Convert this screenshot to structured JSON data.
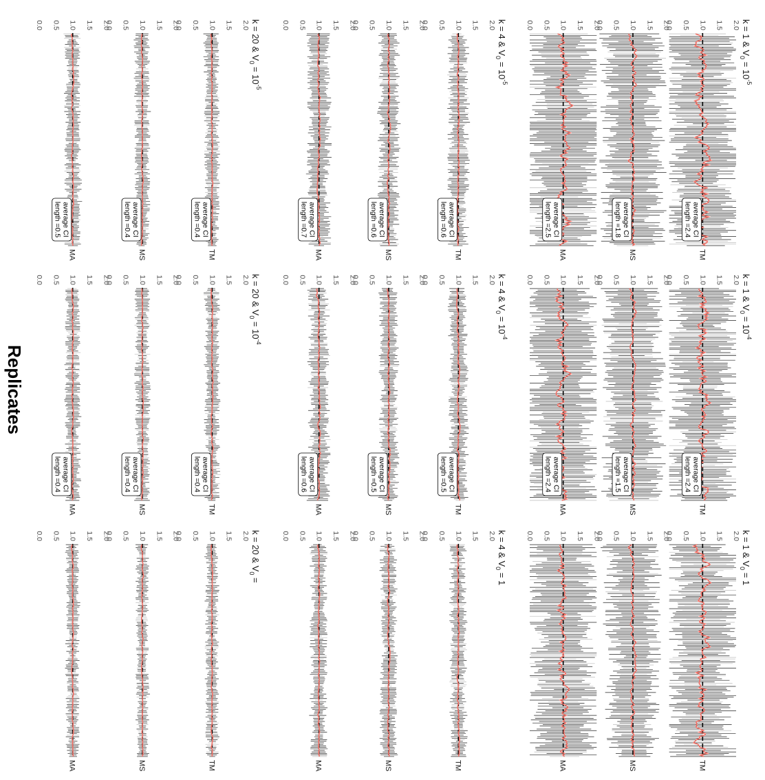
{
  "figure": {
    "x_axis_title": "Replicates",
    "reference_line": 1.0
  },
  "chart_data": {
    "type": "line",
    "rotation": "rotated 90 degrees clockwise; value axis runs top (2.0) to bottom (0.0)",
    "y_ticks": [
      "2.0",
      "1.5",
      "1.0",
      "0.5",
      "0.0"
    ],
    "ylim": [
      0,
      2
    ],
    "reference_value": 1.0,
    "facet_groups": [
      {
        "k": "1",
        "variants": [
          {
            "label_main": "k = 1 & V",
            "label_sub": "0",
            "label_eq": " = 10",
            "label_exp": "-5",
            "panels": [
              {
                "method": "TM",
                "ci_length": "2.4",
                "ci_text": "average CI",
                "ci_prefix": "length =",
                "noise": 0.35,
                "ci": 0.9
              },
              {
                "method": "MS",
                "ci_length": "1.8",
                "ci_text": "average CI",
                "ci_prefix": "length =",
                "noise": 0.15,
                "ci": 0.75
              },
              {
                "method": "MA",
                "ci_length": "2.5",
                "ci_text": "average CI",
                "ci_prefix": "length =",
                "noise": 0.3,
                "ci": 0.95
              }
            ]
          },
          {
            "label_main": "k = 1 & V",
            "label_sub": "0",
            "label_eq": " = 10",
            "label_exp": "-4",
            "panels": [
              {
                "method": "TM",
                "ci_length": "2.4",
                "ci_text": "average CI",
                "ci_prefix": "length =",
                "noise": 0.35,
                "ci": 0.9
              },
              {
                "method": "MS",
                "ci_length": "1.5",
                "ci_text": "average CI",
                "ci_prefix": "length =",
                "noise": 0.12,
                "ci": 0.7
              },
              {
                "method": "MA",
                "ci_length": "2.4",
                "ci_text": "average CI",
                "ci_prefix": "length =",
                "noise": 0.3,
                "ci": 0.95
              }
            ]
          },
          {
            "label_main": "k = 1 & V",
            "label_sub": "0",
            "label_eq": " = 1",
            "label_exp": "",
            "panels": [
              {
                "method": "TM",
                "ci_length": "",
                "ci_text": "",
                "ci_prefix": "",
                "noise": 0.3,
                "ci": 0.85
              },
              {
                "method": "MS",
                "ci_length": "",
                "ci_text": "",
                "ci_prefix": "",
                "noise": 0.12,
                "ci": 0.65
              },
              {
                "method": "MA",
                "ci_length": "",
                "ci_text": "",
                "ci_prefix": "",
                "noise": 0.25,
                "ci": 0.85
              }
            ]
          }
        ]
      },
      {
        "k": "4",
        "variants": [
          {
            "label_main": "k = 4 & V",
            "label_sub": "0",
            "label_eq": " = 10",
            "label_exp": "-5",
            "panels": [
              {
                "method": "TM",
                "ci_length": "0.6",
                "ci_text": "average CI",
                "ci_prefix": "length =",
                "noise": 0.06,
                "ci": 0.25
              },
              {
                "method": "MS",
                "ci_length": "0.6",
                "ci_text": "average CI",
                "ci_prefix": "length =",
                "noise": 0.06,
                "ci": 0.25
              },
              {
                "method": "MA",
                "ci_length": "0.7",
                "ci_text": "average CI",
                "ci_prefix": "length =",
                "noise": 0.07,
                "ci": 0.28
              }
            ]
          },
          {
            "label_main": "k = 4 & V",
            "label_sub": "0",
            "label_eq": " = 10",
            "label_exp": "-4",
            "panels": [
              {
                "method": "TM",
                "ci_length": "0.5",
                "ci_text": "average CI",
                "ci_prefix": "length =",
                "noise": 0.06,
                "ci": 0.22
              },
              {
                "method": "MS",
                "ci_length": "0.5",
                "ci_text": "average CI",
                "ci_prefix": "length =",
                "noise": 0.06,
                "ci": 0.22
              },
              {
                "method": "MA",
                "ci_length": "0.6",
                "ci_text": "average CI",
                "ci_prefix": "length =",
                "noise": 0.06,
                "ci": 0.25
              }
            ]
          },
          {
            "label_main": "k = 4 & V",
            "label_sub": "0",
            "label_eq": " = 1",
            "label_exp": "",
            "panels": [
              {
                "method": "TM",
                "ci_length": "",
                "ci_text": "",
                "ci_prefix": "",
                "noise": 0.05,
                "ci": 0.2
              },
              {
                "method": "MS",
                "ci_length": "",
                "ci_text": "",
                "ci_prefix": "",
                "noise": 0.05,
                "ci": 0.2
              },
              {
                "method": "MA",
                "ci_length": "",
                "ci_text": "",
                "ci_prefix": "",
                "noise": 0.05,
                "ci": 0.2
              }
            ]
          }
        ]
      },
      {
        "k": "20",
        "variants": [
          {
            "label_main": "k = 20 & V",
            "label_sub": "0",
            "label_eq": " = 10",
            "label_exp": "-5",
            "panels": [
              {
                "method": "TM",
                "ci_length": "0.4",
                "ci_text": "average CI",
                "ci_prefix": "length =",
                "noise": 0.04,
                "ci": 0.18
              },
              {
                "method": "MS",
                "ci_length": "0.4",
                "ci_text": "average CI",
                "ci_prefix": "length =",
                "noise": 0.04,
                "ci": 0.18
              },
              {
                "method": "MA",
                "ci_length": "0.5",
                "ci_text": "average CI",
                "ci_prefix": "length =",
                "noise": 0.05,
                "ci": 0.2
              }
            ]
          },
          {
            "label_main": "k = 20 & V",
            "label_sub": "0",
            "label_eq": " = 10",
            "label_exp": "-4",
            "panels": [
              {
                "method": "TM",
                "ci_length": "0.4",
                "ci_text": "average CI",
                "ci_prefix": "length =",
                "noise": 0.04,
                "ci": 0.18
              },
              {
                "method": "MS",
                "ci_length": "0.4",
                "ci_text": "average CI",
                "ci_prefix": "length =",
                "noise": 0.04,
                "ci": 0.18
              },
              {
                "method": "MA",
                "ci_length": "0.4",
                "ci_text": "average CI",
                "ci_prefix": "length =",
                "noise": 0.04,
                "ci": 0.18
              }
            ]
          },
          {
            "label_main": "k = 20 & V",
            "label_sub": "0",
            "label_eq": " = ",
            "label_exp": "",
            "panels": [
              {
                "method": "TM",
                "ci_length": "",
                "ci_text": "",
                "ci_prefix": "",
                "noise": 0.04,
                "ci": 0.16
              },
              {
                "method": "MS",
                "ci_length": "",
                "ci_text": "",
                "ci_prefix": "",
                "noise": 0.04,
                "ci": 0.16
              },
              {
                "method": "MA",
                "ci_length": "",
                "ci_text": "",
                "ci_prefix": "",
                "noise": 0.04,
                "ci": 0.16
              }
            ]
          }
        ]
      }
    ]
  }
}
